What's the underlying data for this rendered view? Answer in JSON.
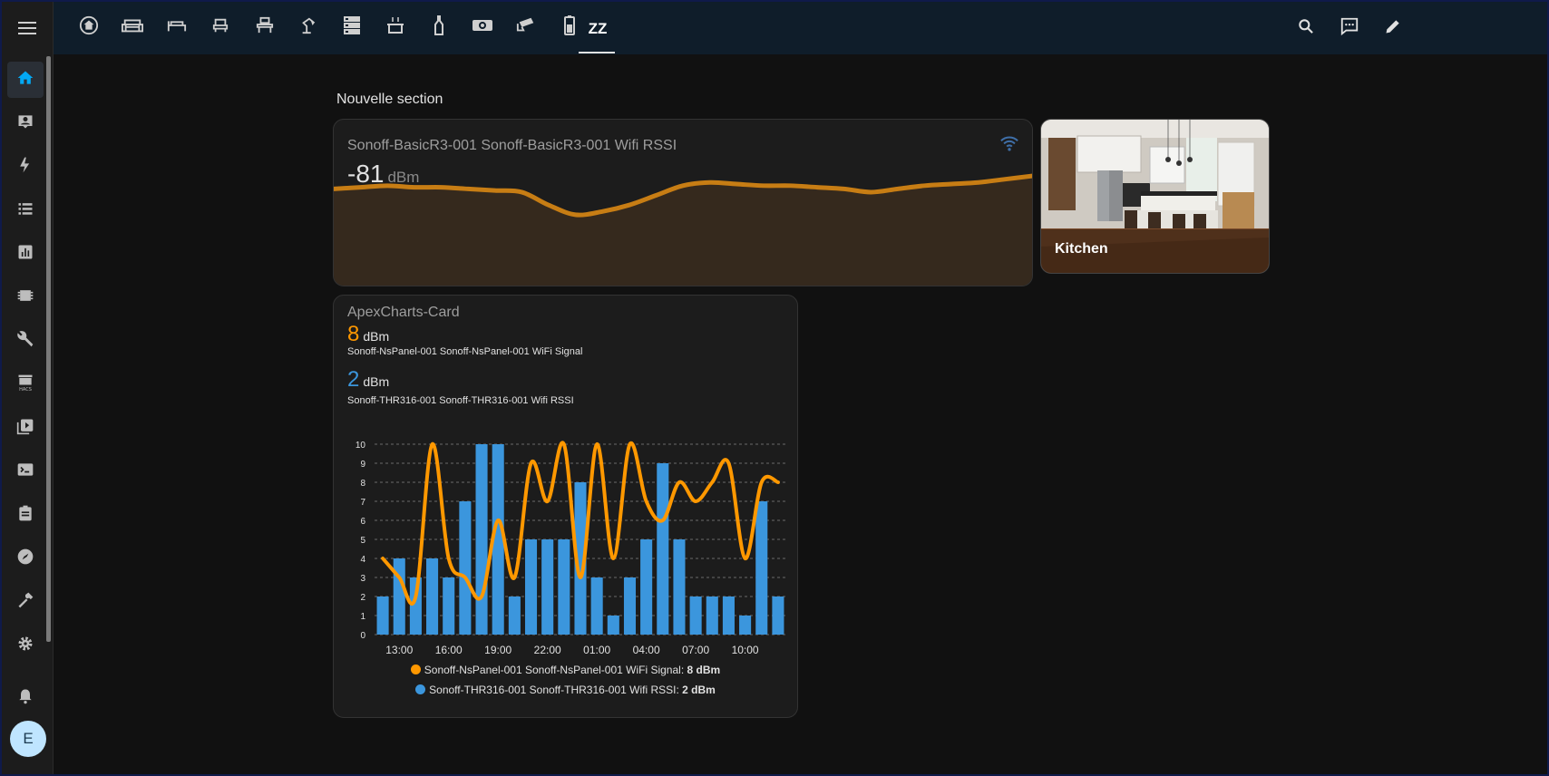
{
  "topbar": {
    "tabs": [
      {
        "icon": "home-icon"
      },
      {
        "icon": "sofa-icon"
      },
      {
        "icon": "bed-icon"
      },
      {
        "icon": "seat-icon"
      },
      {
        "icon": "desk-icon"
      },
      {
        "icon": "desk-lamp-icon"
      },
      {
        "icon": "server-icon"
      },
      {
        "icon": "pot-steam-icon"
      },
      {
        "icon": "bottle-icon"
      },
      {
        "icon": "projector-icon"
      },
      {
        "icon": "cctv-icon"
      },
      {
        "icon": "battery-icon"
      }
    ],
    "active_tab_label": "ZZ",
    "tools": [
      "search-icon",
      "assist-icon",
      "edit-icon"
    ]
  },
  "sidebar": {
    "items": [
      "home-icon",
      "account-box-icon",
      "lightning-icon",
      "list-icon",
      "chart-box-icon",
      "chip-icon",
      "wrench-icon",
      "hacs-icon",
      "media-icon",
      "console-icon",
      "clipboard-icon",
      "compass-icon",
      "hammer-icon",
      "settings-icon"
    ],
    "notifications_icon": "bell-icon",
    "avatar_initial": "E"
  },
  "section": {
    "title": "Nouvelle section"
  },
  "sensor_card": {
    "name": "Sonoff-BasicR3-001 Sonoff-BasicR3-001 Wifi RSSI",
    "value": "-81",
    "unit": "dBm",
    "accent": "#c77d14",
    "fill": "#35291d"
  },
  "picture_card": {
    "caption": "Kitchen"
  },
  "apex_card": {
    "header": "ApexCharts-Card",
    "stats": [
      {
        "value": "8",
        "unit": "dBm",
        "name": "Sonoff-NsPanel-001 Sonoff-NsPanel-001 WiFi Signal",
        "color": "#ff9800"
      },
      {
        "value": "2",
        "unit": "dBm",
        "name": "Sonoff-THR316-001 Sonoff-THR316-001 Wifi RSSI",
        "color": "#3b96dd"
      }
    ],
    "legend": [
      {
        "label": "Sonoff-NsPanel-001 Sonoff-NsPanel-001 WiFi Signal:",
        "value": "8 dBm",
        "color": "#ff9800"
      },
      {
        "label": "Sonoff-THR316-001 Sonoff-THR316-001 Wifi RSSI:",
        "value": "2 dBm",
        "color": "#3b96dd"
      }
    ]
  },
  "chart_data": {
    "type": "bar",
    "categories": [
      "11:30",
      "12:30",
      "13:30",
      "14:30",
      "15:30",
      "16:30",
      "17:30",
      "18:30",
      "19:30",
      "20:30",
      "21:30",
      "22:30",
      "23:30",
      "00:30",
      "01:30",
      "02:30",
      "03:30",
      "04:30",
      "05:30",
      "06:30",
      "07:30",
      "08:30",
      "09:30",
      "10:30",
      "11:30"
    ],
    "x_tick_labels": [
      "13:00",
      "16:00",
      "19:00",
      "22:00",
      "01:00",
      "04:00",
      "07:00",
      "10:00"
    ],
    "series": [
      {
        "name": "Sonoff-THR316-001 Sonoff-THR316-001 Wifi RSSI",
        "type": "bar",
        "color": "#3b96dd",
        "values": [
          2,
          4,
          3,
          4,
          3,
          7,
          10,
          10,
          2,
          5,
          5,
          5,
          8,
          3,
          1,
          3,
          5,
          9,
          5,
          2,
          2,
          2,
          1,
          7,
          2
        ]
      },
      {
        "name": "Sonoff-NsPanel-001 Sonoff-NsPanel-001 WiFi Signal",
        "type": "line",
        "color": "#ff9800",
        "values": [
          4,
          3,
          2,
          10,
          4,
          3,
          2,
          6,
          3,
          9,
          7,
          10,
          3,
          10,
          4,
          10,
          7,
          6,
          8,
          7,
          8,
          9,
          4,
          8,
          8
        ]
      }
    ],
    "ylim": [
      0,
      10
    ],
    "y_ticks": [
      0,
      1,
      2,
      3,
      4,
      5,
      6,
      7,
      8,
      9,
      10
    ],
    "grid": true,
    "legend_position": "bottom"
  },
  "sensor_history": {
    "type": "area",
    "values": [
      -82,
      -81.5,
      -81,
      -81.5,
      -81.5,
      -82,
      -82.5,
      -83,
      -87,
      -90,
      -89,
      -87,
      -84,
      -81,
      -80,
      -80.5,
      -81,
      -81,
      -81.5,
      -82,
      -83,
      -82,
      -81,
      -80.5,
      -80,
      -79,
      -78
    ]
  }
}
